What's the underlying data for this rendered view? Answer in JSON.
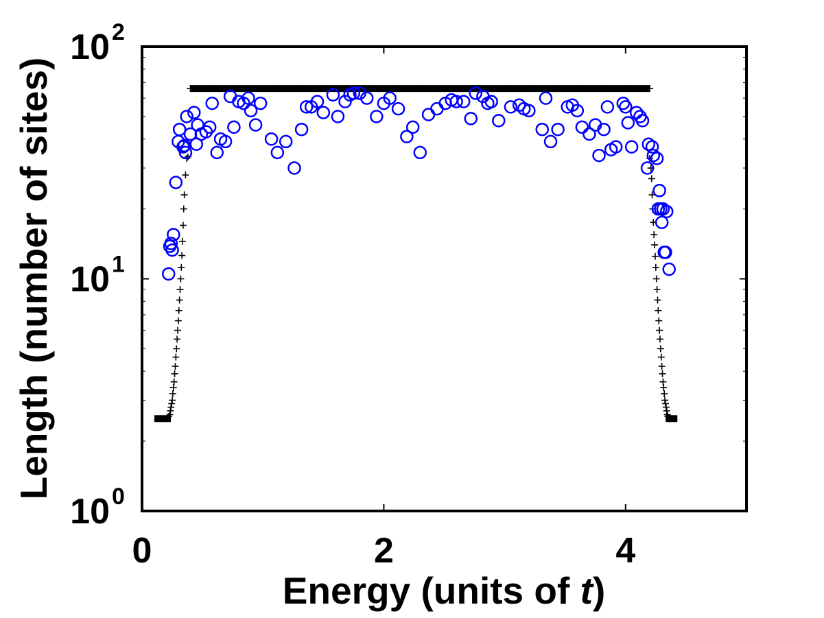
{
  "chart_data": {
    "type": "scatter",
    "xlabel": {
      "prefix": "Energy (units of ",
      "var": "t",
      "suffix": ")"
    },
    "ylabel": "Length (number of sites)",
    "xlim": [
      0,
      5
    ],
    "ylim": [
      1,
      100
    ],
    "yscale": "log",
    "grid": false,
    "legend": "none",
    "x_ticks": [
      {
        "value": 0,
        "label": "0"
      },
      {
        "value": 2,
        "label": "2"
      },
      {
        "value": 4,
        "label": "4"
      }
    ],
    "y_ticks": [
      {
        "value": 1,
        "base": "10",
        "exp": "0"
      },
      {
        "value": 10,
        "base": "10",
        "exp": "1"
      },
      {
        "value": 100,
        "base": "10",
        "exp": "2"
      }
    ],
    "series": [
      {
        "marker": "plus",
        "color": "#000000",
        "points": [
          [
            0.13,
            2.5
          ],
          [
            0.15,
            2.5
          ],
          [
            0.17,
            2.5
          ],
          [
            0.19,
            2.5
          ],
          [
            0.21,
            2.5
          ],
          [
            0.22,
            2.55
          ],
          [
            0.23,
            2.6
          ],
          [
            0.235,
            2.7
          ],
          [
            0.24,
            2.8
          ],
          [
            0.245,
            2.9
          ],
          [
            0.25,
            3.0
          ],
          [
            0.255,
            3.2
          ],
          [
            0.26,
            3.4
          ],
          [
            0.265,
            3.6
          ],
          [
            0.27,
            3.9
          ],
          [
            0.275,
            4.2
          ],
          [
            0.28,
            4.6
          ],
          [
            0.285,
            5.0
          ],
          [
            0.29,
            5.5
          ],
          [
            0.295,
            6.0
          ],
          [
            0.3,
            6.6
          ],
          [
            0.305,
            7.3
          ],
          [
            0.31,
            8.1
          ],
          [
            0.315,
            9.0
          ],
          [
            0.32,
            10.0
          ],
          [
            0.325,
            11.2
          ],
          [
            0.33,
            12.6
          ],
          [
            0.335,
            14.5
          ],
          [
            0.34,
            17.0
          ],
          [
            0.345,
            20.0
          ],
          [
            0.35,
            23.0
          ],
          [
            0.36,
            28.0
          ],
          [
            0.37,
            33.0
          ],
          [
            0.38,
            33.5
          ],
          [
            0.4,
            66
          ],
          [
            0.5,
            66
          ],
          [
            0.6,
            66
          ],
          [
            0.7,
            66
          ],
          [
            0.8,
            66
          ],
          [
            0.9,
            66
          ],
          [
            1.0,
            66
          ],
          [
            1.1,
            66
          ],
          [
            1.2,
            66
          ],
          [
            1.3,
            66
          ],
          [
            1.4,
            66
          ],
          [
            1.5,
            66
          ],
          [
            1.6,
            66
          ],
          [
            1.7,
            66
          ],
          [
            1.8,
            66
          ],
          [
            1.9,
            66
          ],
          [
            2.0,
            66
          ],
          [
            2.1,
            66
          ],
          [
            2.2,
            66
          ],
          [
            2.3,
            66
          ],
          [
            2.4,
            66
          ],
          [
            2.5,
            66
          ],
          [
            2.6,
            66
          ],
          [
            2.7,
            66
          ],
          [
            2.8,
            66
          ],
          [
            2.9,
            66
          ],
          [
            3.0,
            66
          ],
          [
            3.1,
            66
          ],
          [
            3.2,
            66
          ],
          [
            3.3,
            66
          ],
          [
            3.4,
            66
          ],
          [
            3.5,
            66
          ],
          [
            3.6,
            66
          ],
          [
            3.7,
            66
          ],
          [
            3.8,
            66
          ],
          [
            3.9,
            66
          ],
          [
            4.0,
            66
          ],
          [
            4.1,
            66
          ],
          [
            4.2,
            66
          ],
          [
            4.2,
            33
          ],
          [
            4.21,
            30
          ],
          [
            4.215,
            27
          ],
          [
            4.22,
            23
          ],
          [
            4.225,
            20
          ],
          [
            4.23,
            17.5
          ],
          [
            4.235,
            15.5
          ],
          [
            4.24,
            14
          ],
          [
            4.245,
            12.5
          ],
          [
            4.25,
            11.2
          ],
          [
            4.255,
            10
          ],
          [
            4.26,
            9.0
          ],
          [
            4.265,
            8.1
          ],
          [
            4.27,
            7.3
          ],
          [
            4.275,
            6.6
          ],
          [
            4.28,
            6.0
          ],
          [
            4.285,
            5.5
          ],
          [
            4.29,
            5.0
          ],
          [
            4.295,
            4.6
          ],
          [
            4.3,
            4.2
          ],
          [
            4.305,
            3.9
          ],
          [
            4.31,
            3.6
          ],
          [
            4.315,
            3.4
          ],
          [
            4.32,
            3.2
          ],
          [
            4.325,
            3.0
          ],
          [
            4.33,
            2.9
          ],
          [
            4.335,
            2.8
          ],
          [
            4.34,
            2.7
          ],
          [
            4.345,
            2.6
          ],
          [
            4.35,
            2.55
          ],
          [
            4.36,
            2.5
          ],
          [
            4.38,
            2.5
          ],
          [
            4.4,
            2.5
          ]
        ]
      },
      {
        "marker": "circle",
        "color": "#0000ff",
        "points": [
          [
            0.22,
            10.5
          ],
          [
            0.23,
            13.8
          ],
          [
            0.24,
            14.2
          ],
          [
            0.25,
            13.3
          ],
          [
            0.26,
            15.5
          ],
          [
            0.28,
            26
          ],
          [
            0.3,
            39
          ],
          [
            0.31,
            44
          ],
          [
            0.34,
            37
          ],
          [
            0.35,
            37.5
          ],
          [
            0.36,
            35
          ],
          [
            0.37,
            50
          ],
          [
            0.4,
            42
          ],
          [
            0.43,
            52
          ],
          [
            0.45,
            38
          ],
          [
            0.46,
            46
          ],
          [
            0.49,
            42
          ],
          [
            0.53,
            43
          ],
          [
            0.56,
            45
          ],
          [
            0.58,
            57
          ],
          [
            0.62,
            35
          ],
          [
            0.65,
            40
          ],
          [
            0.69,
            39
          ],
          [
            0.73,
            61
          ],
          [
            0.76,
            45
          ],
          [
            0.8,
            58
          ],
          [
            0.84,
            57
          ],
          [
            0.88,
            60
          ],
          [
            0.9,
            53
          ],
          [
            0.94,
            46
          ],
          [
            0.98,
            57
          ],
          [
            1.07,
            40
          ],
          [
            1.12,
            35
          ],
          [
            1.19,
            39
          ],
          [
            1.26,
            30
          ],
          [
            1.32,
            44
          ],
          [
            1.36,
            55
          ],
          [
            1.4,
            55
          ],
          [
            1.45,
            58
          ],
          [
            1.5,
            52
          ],
          [
            1.58,
            62
          ],
          [
            1.62,
            50
          ],
          [
            1.68,
            58
          ],
          [
            1.72,
            62
          ],
          [
            1.75,
            63
          ],
          [
            1.8,
            63
          ],
          [
            1.86,
            60
          ],
          [
            1.94,
            50
          ],
          [
            2.0,
            57
          ],
          [
            2.05,
            60
          ],
          [
            2.12,
            54
          ],
          [
            2.19,
            41
          ],
          [
            2.24,
            45
          ],
          [
            2.3,
            35
          ],
          [
            2.37,
            51
          ],
          [
            2.44,
            54
          ],
          [
            2.51,
            57
          ],
          [
            2.56,
            59
          ],
          [
            2.6,
            58
          ],
          [
            2.66,
            58
          ],
          [
            2.72,
            49
          ],
          [
            2.76,
            63
          ],
          [
            2.82,
            61
          ],
          [
            2.86,
            57
          ],
          [
            2.89,
            58
          ],
          [
            2.95,
            48
          ],
          [
            3.05,
            55
          ],
          [
            3.12,
            56
          ],
          [
            3.16,
            54
          ],
          [
            3.2,
            53
          ],
          [
            3.31,
            44
          ],
          [
            3.34,
            60
          ],
          [
            3.38,
            39
          ],
          [
            3.44,
            44
          ],
          [
            3.52,
            55
          ],
          [
            3.56,
            56
          ],
          [
            3.6,
            53
          ],
          [
            3.64,
            45
          ],
          [
            3.7,
            42
          ],
          [
            3.75,
            46
          ],
          [
            3.78,
            34
          ],
          [
            3.82,
            44
          ],
          [
            3.85,
            55
          ],
          [
            3.88,
            36
          ],
          [
            3.92,
            37
          ],
          [
            3.98,
            57
          ],
          [
            4.0,
            55
          ],
          [
            4.02,
            47
          ],
          [
            4.05,
            37
          ],
          [
            4.09,
            52
          ],
          [
            4.12,
            50
          ],
          [
            4.14,
            48
          ],
          [
            4.18,
            30
          ],
          [
            4.19,
            38
          ],
          [
            4.22,
            37
          ],
          [
            4.23,
            34
          ],
          [
            4.26,
            33
          ],
          [
            4.27,
            20
          ],
          [
            4.28,
            24
          ],
          [
            4.29,
            20
          ],
          [
            4.3,
            17.5
          ],
          [
            4.31,
            20
          ],
          [
            4.32,
            13
          ],
          [
            4.33,
            13
          ],
          [
            4.34,
            19.5
          ],
          [
            4.36,
            11
          ]
        ]
      }
    ]
  }
}
